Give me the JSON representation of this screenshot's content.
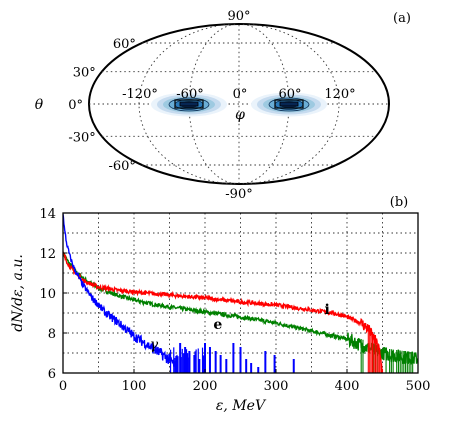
{
  "chart_data": [
    {
      "panel": "(a)",
      "type": "heatmap",
      "projection": "mollweide",
      "ylabel": "θ",
      "xlabel": "φ",
      "lon_tick_labels": [
        "-120°",
        "-60°",
        "0°",
        "60°",
        "120°"
      ],
      "lat_tick_labels": [
        "90°",
        "60°",
        "30°",
        "0°",
        "-30°",
        "-60°",
        "-90°"
      ],
      "lon_ticks": [
        -120,
        -60,
        0,
        60,
        120
      ],
      "lat_ticks": [
        90,
        60,
        30,
        0,
        -30,
        -60,
        -90
      ],
      "grid": true,
      "lobes": [
        {
          "lon": -60,
          "lat": 0,
          "levels": [
            1,
            2,
            3,
            4,
            5,
            6
          ]
        },
        {
          "lon": 60,
          "lat": 0,
          "levels": [
            1,
            2,
            3,
            4,
            5,
            6
          ]
        }
      ],
      "colors": {
        "fill": [
          "#eaf3fb",
          "#c6dbef",
          "#9ecae1",
          "#6baed6",
          "#2b7bba",
          "#08306b"
        ],
        "contour": "#000000"
      }
    },
    {
      "panel": "(b)",
      "type": "line",
      "ylabel": "dN/dε,  a.u.",
      "xlabel": "ε,  MeV",
      "xlim": [
        0,
        500
      ],
      "ylim": [
        6,
        14
      ],
      "x_ticks": [
        0,
        100,
        200,
        300,
        400,
        500
      ],
      "y_ticks": [
        6,
        8,
        10,
        12,
        14
      ],
      "grid": true,
      "series": [
        {
          "name": "i",
          "color": "#ff0000",
          "x": [
            0,
            5,
            10,
            20,
            30,
            50,
            75,
            100,
            150,
            200,
            250,
            300,
            350,
            380,
            400,
            420,
            430,
            440,
            445,
            450
          ],
          "values": [
            12.0,
            11.6,
            11.3,
            10.9,
            10.6,
            10.3,
            10.15,
            10.05,
            9.9,
            9.75,
            9.55,
            9.4,
            9.15,
            9.0,
            8.8,
            8.5,
            8.2,
            7.6,
            7.2,
            6.0
          ]
        },
        {
          "name": "e",
          "color": "#008000",
          "x": [
            0,
            5,
            10,
            20,
            30,
            50,
            75,
            100,
            125,
            150,
            200,
            250,
            300,
            350,
            400,
            420,
            440,
            460,
            480,
            500
          ],
          "values": [
            12.0,
            11.7,
            11.4,
            11.0,
            10.7,
            10.25,
            9.9,
            9.65,
            9.45,
            9.3,
            9.05,
            8.8,
            8.5,
            8.1,
            7.7,
            7.4,
            7.1,
            6.9,
            6.8,
            6.7
          ]
        },
        {
          "name": "γ",
          "color": "#0000ff",
          "x": [
            0,
            2,
            5,
            10,
            15,
            20,
            30,
            40,
            50,
            60,
            75,
            90,
            100,
            115,
            130,
            145,
            155,
            160
          ],
          "values": [
            14.0,
            13.2,
            12.5,
            11.8,
            11.3,
            10.9,
            10.3,
            9.8,
            9.4,
            9.0,
            8.6,
            8.15,
            7.85,
            7.5,
            7.15,
            6.8,
            6.5,
            6.2
          ],
          "spikes_x": [
            165,
            172,
            178,
            185,
            192,
            200,
            207,
            215,
            222,
            230,
            240,
            250,
            258,
            265,
            275,
            285,
            298,
            325
          ]
        }
      ],
      "annotations": [
        {
          "text": "i",
          "x": 372,
          "y": 8.95
        },
        {
          "text": "e",
          "x": 218,
          "y": 8.2
        },
        {
          "text": "γ",
          "x": 128,
          "y": 7.2
        }
      ]
    }
  ]
}
